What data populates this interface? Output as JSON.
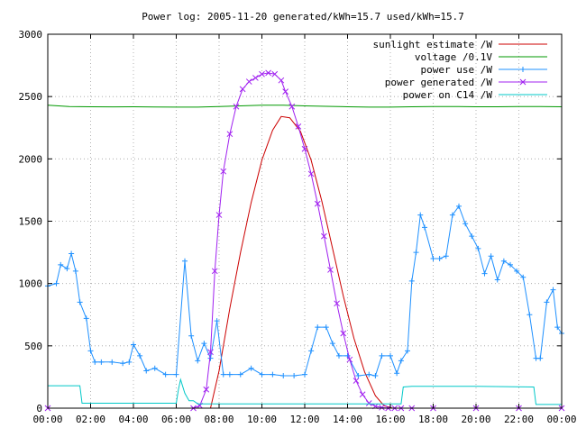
{
  "chart_data": {
    "type": "line",
    "title": "Power log: 2005-11-20 generated/kWh=15.7 used/kWh=15.7",
    "xlabel": "",
    "ylabel": "",
    "xlim": [
      0,
      24
    ],
    "ylim": [
      0,
      3000
    ],
    "x_ticks": [
      0,
      2,
      4,
      6,
      8,
      10,
      12,
      14,
      16,
      18,
      20,
      22,
      24
    ],
    "x_tick_labels": [
      "00:00",
      "02:00",
      "04:00",
      "06:00",
      "08:00",
      "10:00",
      "12:00",
      "14:00",
      "16:00",
      "18:00",
      "20:00",
      "22:00",
      "00:00"
    ],
    "y_ticks": [
      0,
      500,
      1000,
      1500,
      2000,
      2500,
      3000
    ],
    "y_tick_labels": [
      "0",
      "500",
      "1000",
      "1500",
      "2000",
      "2500",
      "3000"
    ],
    "grid": true,
    "legend_position": "top-right",
    "series": [
      {
        "name": "sunlight estimate /W",
        "color": "#cc0000",
        "marker": "none",
        "x": [
          7.6,
          8.0,
          8.5,
          9.0,
          9.5,
          10.0,
          10.5,
          10.9,
          11.3,
          11.8,
          12.3,
          12.8,
          13.3,
          13.8,
          14.3,
          14.8,
          15.3,
          15.7,
          16.1
        ],
        "y": [
          0,
          300,
          800,
          1250,
          1650,
          1990,
          2230,
          2340,
          2330,
          2220,
          1990,
          1660,
          1280,
          900,
          560,
          290,
          100,
          20,
          0
        ]
      },
      {
        "name": "voltage /0.1V",
        "color": "#009900",
        "marker": "none",
        "x": [
          0,
          1,
          2,
          3,
          4,
          5,
          6,
          7,
          8,
          9,
          10,
          11,
          12,
          13,
          14,
          15,
          16,
          17,
          18,
          19,
          20,
          21,
          22,
          23,
          24
        ],
        "y": [
          2430,
          2420,
          2418,
          2417,
          2418,
          2416,
          2415,
          2415,
          2420,
          2425,
          2430,
          2430,
          2425,
          2422,
          2418,
          2415,
          2415,
          2418,
          2420,
          2420,
          2418,
          2418,
          2420,
          2420,
          2418
        ]
      },
      {
        "name": "power use /W",
        "color": "#1e90ff",
        "marker": "+",
        "x": [
          0.0,
          0.4,
          0.6,
          0.9,
          1.1,
          1.3,
          1.5,
          1.8,
          2.0,
          2.2,
          2.5,
          3.0,
          3.5,
          3.8,
          4.0,
          4.3,
          4.6,
          5.0,
          5.5,
          6.0,
          6.4,
          6.7,
          7.0,
          7.3,
          7.6,
          7.9,
          8.2,
          8.5,
          9.0,
          9.5,
          10.0,
          10.5,
          11.0,
          11.5,
          12.0,
          12.3,
          12.6,
          13.0,
          13.3,
          13.6,
          14.0,
          14.5,
          15.0,
          15.3,
          15.6,
          16.0,
          16.3,
          16.5,
          16.8,
          17.0,
          17.2,
          17.4,
          17.6,
          18.0,
          18.3,
          18.6,
          18.9,
          19.2,
          19.5,
          19.8,
          20.1,
          20.4,
          20.7,
          21.0,
          21.3,
          21.6,
          21.9,
          22.2,
          22.5,
          22.8,
          23.0,
          23.3,
          23.6,
          23.8,
          24.0
        ],
        "y": [
          980,
          1000,
          1150,
          1120,
          1240,
          1100,
          850,
          720,
          460,
          370,
          370,
          370,
          360,
          370,
          510,
          420,
          300,
          320,
          270,
          270,
          1180,
          580,
          380,
          520,
          400,
          700,
          270,
          270,
          270,
          320,
          270,
          270,
          260,
          260,
          270,
          460,
          650,
          650,
          520,
          420,
          420,
          260,
          270,
          260,
          420,
          420,
          280,
          380,
          460,
          1020,
          1250,
          1550,
          1450,
          1200,
          1200,
          1220,
          1550,
          1620,
          1480,
          1380,
          1280,
          1080,
          1220,
          1030,
          1180,
          1150,
          1100,
          1050,
          750,
          400,
          400,
          850,
          950,
          650,
          600
        ]
      },
      {
        "name": "power generated /W",
        "color": "#a020f0",
        "marker": "x",
        "x": [
          0,
          6.8,
          7.1,
          7.4,
          7.6,
          7.8,
          8.0,
          8.2,
          8.5,
          8.8,
          9.1,
          9.4,
          9.7,
          10.0,
          10.3,
          10.6,
          10.9,
          11.1,
          11.4,
          11.7,
          12.0,
          12.3,
          12.6,
          12.9,
          13.2,
          13.5,
          13.8,
          14.1,
          14.4,
          14.7,
          15.0,
          15.3,
          15.6,
          15.9,
          16.2,
          16.5,
          17.0,
          18.0,
          20.0,
          22.0,
          24.0
        ],
        "y": [
          0,
          0,
          20,
          150,
          450,
          1100,
          1550,
          1900,
          2200,
          2420,
          2560,
          2620,
          2650,
          2680,
          2690,
          2680,
          2630,
          2540,
          2420,
          2260,
          2080,
          1880,
          1640,
          1380,
          1110,
          840,
          600,
          390,
          220,
          110,
          40,
          15,
          5,
          0,
          0,
          0,
          0,
          0,
          0,
          0,
          0
        ]
      },
      {
        "name": "power on C14 /W",
        "color": "#00c8c8",
        "marker": "none",
        "x": [
          0,
          1.5,
          1.6,
          2.0,
          4.0,
          6.0,
          6.1,
          6.2,
          6.4,
          6.6,
          6.8,
          7.0,
          7.5,
          10.0,
          14.0,
          16.5,
          16.6,
          17.0,
          20.0,
          22.7,
          22.8,
          23.5,
          24.0
        ],
        "y": [
          180,
          180,
          40,
          40,
          40,
          40,
          150,
          230,
          120,
          60,
          60,
          35,
          35,
          35,
          35,
          35,
          170,
          175,
          175,
          170,
          30,
          30,
          30
        ]
      }
    ]
  }
}
